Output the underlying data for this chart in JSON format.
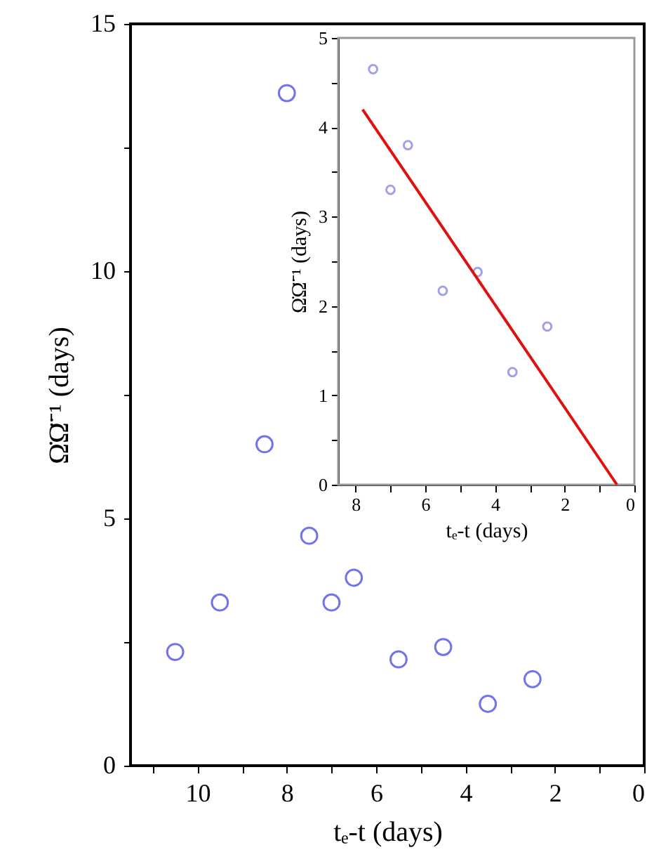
{
  "chart_data": [
    {
      "type": "scatter",
      "xlabel": "tₑ-t  (days)",
      "ylabel": "Ω̇Ω̈⁻¹ (days)",
      "x": [
        10.5,
        9.5,
        8.5,
        8.0,
        7.5,
        7.0,
        6.5,
        5.5,
        4.5,
        3.5,
        2.5
      ],
      "values": [
        2.3,
        3.3,
        6.5,
        13.6,
        4.65,
        3.3,
        3.8,
        2.15,
        2.4,
        1.25,
        1.75
      ],
      "color": "#3a3ae0",
      "marker": "circle",
      "grid": false,
      "xlim": [
        11.5,
        0
      ],
      "xticks": [
        0,
        {
          "value": 1,
          "label": null
        },
        2,
        {
          "value": 3,
          "label": null
        },
        4,
        {
          "value": 5,
          "label": null
        },
        6,
        {
          "value": 7,
          "label": null
        },
        8,
        {
          "value": 9,
          "label": null
        },
        10,
        {
          "value": 11,
          "label": null
        }
      ],
      "ylim": [
        0,
        15
      ],
      "yticks": [
        0,
        {
          "value": 2.5,
          "label": null
        },
        5,
        {
          "value": 7.5,
          "label": null
        },
        10,
        {
          "value": 12.5,
          "label": null
        },
        15
      ]
    },
    {
      "type": "scatter",
      "xlabel": "tₑ-t  (days)",
      "ylabel": "Ω̇Ω̈⁻¹ (days)",
      "grid": false,
      "series": [
        {
          "type": "scatter",
          "color": "#7a7ae0",
          "marker": "circle",
          "x": [
            7.5,
            7.0,
            6.5,
            5.5,
            4.5,
            3.5,
            2.5
          ],
          "values": [
            4.65,
            3.3,
            3.8,
            2.17,
            2.38,
            1.26,
            1.77
          ]
        },
        {
          "type": "line",
          "color": "#e01010",
          "line_style": "solid",
          "marker": "none",
          "x": [
            7.8,
            0.5
          ],
          "values": [
            4.2,
            0
          ]
        }
      ],
      "xlim": [
        8.5,
        0
      ],
      "xticks": [
        0,
        {
          "value": 1,
          "label": null
        },
        2,
        {
          "value": 3,
          "label": null
        },
        4,
        {
          "value": 5,
          "label": null
        },
        6,
        {
          "value": 7,
          "label": null
        },
        8
      ],
      "ylim": [
        0,
        5
      ],
      "yticks": [
        0,
        {
          "value": 0.5,
          "label": null
        },
        1,
        {
          "value": 1.5,
          "label": null
        },
        2,
        {
          "value": 2.5,
          "label": null
        },
        3,
        {
          "value": 3.5,
          "label": null
        },
        4,
        {
          "value": 4.5,
          "label": null
        },
        5
      ]
    }
  ]
}
